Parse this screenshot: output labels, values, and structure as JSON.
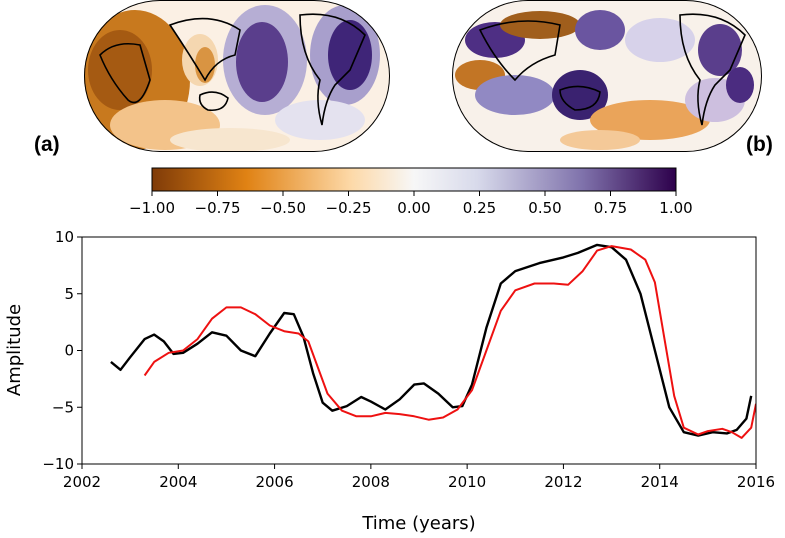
{
  "panels": {
    "a": "(a)",
    "b": "(b)"
  },
  "colorbar": {
    "ticks": [
      "−1.00",
      "−0.75",
      "−0.50",
      "−0.25",
      "0.00",
      "0.25",
      "0.50",
      "0.75",
      "1.00"
    ],
    "colors": {
      "neg_dark": "#7f3b08",
      "neg_mid": "#e08214",
      "neg_light": "#fdd9a8",
      "zero": "#f7f7f7",
      "pos_light": "#d8daeb",
      "pos_mid": "#8073ac",
      "pos_dark": "#2d004b"
    }
  },
  "chart_data": {
    "type": "line",
    "xlabel": "Time (years)",
    "ylabel": "Amplitude",
    "xlim": [
      2002,
      2016
    ],
    "ylim": [
      -10,
      10
    ],
    "xticks": [
      2002,
      2004,
      2006,
      2008,
      2010,
      2012,
      2014,
      2016
    ],
    "yticks": [
      -10,
      -5,
      0,
      5,
      10
    ],
    "series": [
      {
        "name": "black",
        "color": "#000000",
        "points": [
          [
            2002.6,
            -1.0
          ],
          [
            2002.8,
            -1.7
          ],
          [
            2003.0,
            -0.6
          ],
          [
            2003.3,
            1.0
          ],
          [
            2003.5,
            1.4
          ],
          [
            2003.7,
            0.8
          ],
          [
            2003.9,
            -0.3
          ],
          [
            2004.1,
            -0.2
          ],
          [
            2004.4,
            0.6
          ],
          [
            2004.7,
            1.6
          ],
          [
            2005.0,
            1.3
          ],
          [
            2005.3,
            0.0
          ],
          [
            2005.6,
            -0.5
          ],
          [
            2005.9,
            1.5
          ],
          [
            2006.2,
            3.3
          ],
          [
            2006.4,
            3.2
          ],
          [
            2006.6,
            1.2
          ],
          [
            2006.8,
            -2.0
          ],
          [
            2007.0,
            -4.6
          ],
          [
            2007.2,
            -5.3
          ],
          [
            2007.5,
            -4.9
          ],
          [
            2007.8,
            -4.1
          ],
          [
            2008.0,
            -4.5
          ],
          [
            2008.3,
            -5.2
          ],
          [
            2008.6,
            -4.3
          ],
          [
            2008.9,
            -3.0
          ],
          [
            2009.1,
            -2.9
          ],
          [
            2009.4,
            -3.8
          ],
          [
            2009.7,
            -5.0
          ],
          [
            2009.9,
            -4.9
          ],
          [
            2010.1,
            -3.0
          ],
          [
            2010.4,
            2.0
          ],
          [
            2010.7,
            5.9
          ],
          [
            2011.0,
            7.0
          ],
          [
            2011.5,
            7.7
          ],
          [
            2012.0,
            8.2
          ],
          [
            2012.3,
            8.6
          ],
          [
            2012.7,
            9.3
          ],
          [
            2013.0,
            9.1
          ],
          [
            2013.3,
            8.0
          ],
          [
            2013.6,
            5.0
          ],
          [
            2013.9,
            0.0
          ],
          [
            2014.2,
            -5.0
          ],
          [
            2014.5,
            -7.2
          ],
          [
            2014.8,
            -7.5
          ],
          [
            2015.1,
            -7.2
          ],
          [
            2015.4,
            -7.3
          ],
          [
            2015.6,
            -7.0
          ],
          [
            2015.8,
            -6.0
          ],
          [
            2015.9,
            -4.0
          ]
        ]
      },
      {
        "name": "red",
        "color": "#ee1111",
        "points": [
          [
            2003.3,
            -2.2
          ],
          [
            2003.5,
            -1.0
          ],
          [
            2003.8,
            -0.2
          ],
          [
            2004.1,
            0.0
          ],
          [
            2004.4,
            1.0
          ],
          [
            2004.7,
            2.8
          ],
          [
            2005.0,
            3.8
          ],
          [
            2005.3,
            3.8
          ],
          [
            2005.6,
            3.2
          ],
          [
            2005.9,
            2.2
          ],
          [
            2006.2,
            1.7
          ],
          [
            2006.5,
            1.5
          ],
          [
            2006.7,
            0.8
          ],
          [
            2006.9,
            -1.5
          ],
          [
            2007.1,
            -3.8
          ],
          [
            2007.4,
            -5.3
          ],
          [
            2007.7,
            -5.8
          ],
          [
            2008.0,
            -5.8
          ],
          [
            2008.3,
            -5.5
          ],
          [
            2008.6,
            -5.6
          ],
          [
            2008.9,
            -5.8
          ],
          [
            2009.2,
            -6.1
          ],
          [
            2009.5,
            -5.9
          ],
          [
            2009.8,
            -5.2
          ],
          [
            2010.1,
            -3.5
          ],
          [
            2010.4,
            0.0
          ],
          [
            2010.7,
            3.5
          ],
          [
            2011.0,
            5.3
          ],
          [
            2011.4,
            5.9
          ],
          [
            2011.8,
            5.9
          ],
          [
            2012.1,
            5.8
          ],
          [
            2012.4,
            7.0
          ],
          [
            2012.7,
            8.8
          ],
          [
            2013.0,
            9.2
          ],
          [
            2013.4,
            8.9
          ],
          [
            2013.7,
            8.0
          ],
          [
            2013.9,
            6.0
          ],
          [
            2014.1,
            1.0
          ],
          [
            2014.3,
            -4.0
          ],
          [
            2014.5,
            -6.8
          ],
          [
            2014.8,
            -7.4
          ],
          [
            2015.0,
            -7.1
          ],
          [
            2015.3,
            -6.9
          ],
          [
            2015.5,
            -7.2
          ],
          [
            2015.7,
            -7.7
          ],
          [
            2015.9,
            -6.8
          ],
          [
            2016.0,
            -4.7
          ]
        ]
      }
    ]
  }
}
